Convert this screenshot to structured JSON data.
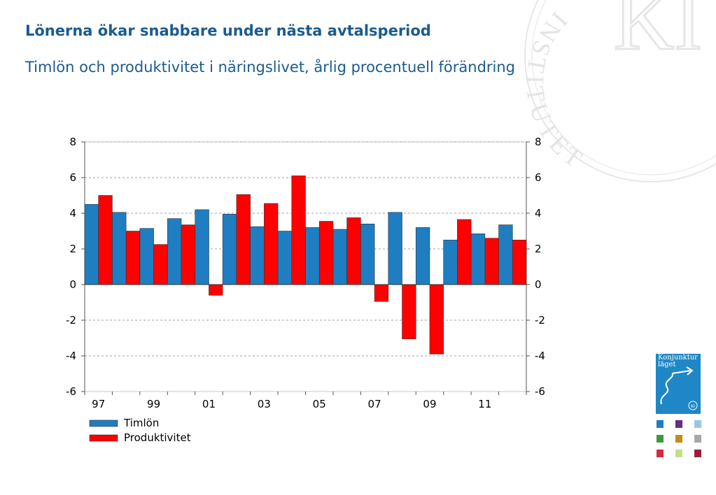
{
  "title": "Lönerna ökar snabbare under nästa avtalsperiod",
  "subtitle": "Timlön och produktivitet i näringslivet, årlig procentuell förändring",
  "watermark": {
    "text": "INSTITUTET",
    "mark": "KI"
  },
  "logo": {
    "text": "Konjunktur\nläget",
    "badge": "KI"
  },
  "swatches": [
    {
      "color": "#1f7ec2",
      "name": "blue-report-icon"
    },
    {
      "color": "#6a2d7a",
      "name": "purple-report-icon"
    },
    {
      "color": "#9cc6df",
      "name": "lightblue-report-icon"
    },
    {
      "color": "#3c9a3c",
      "name": "green-report-icon"
    },
    {
      "color": "#c98a17",
      "name": "orange-report-icon"
    },
    {
      "color": "#a8a8a8",
      "name": "grey-report-icon"
    },
    {
      "color": "#d8283f",
      "name": "red-report-icon"
    },
    {
      "color": "#c2de8a",
      "name": "lime-report-icon"
    },
    {
      "color": "#9a1f36",
      "name": "darkred-report-icon"
    }
  ],
  "chart_data": {
    "type": "bar",
    "categories": [
      "1997",
      "1998",
      "1999",
      "2000",
      "2001",
      "2002",
      "2003",
      "2004",
      "2005",
      "2006",
      "2007",
      "2008",
      "2009",
      "2010",
      "2011",
      "2012"
    ],
    "xtick_labels": [
      "97",
      "99",
      "01",
      "03",
      "05",
      "07",
      "09",
      "11"
    ],
    "series": [
      {
        "name": "Timlön",
        "color": "#1f7ec2",
        "values": [
          4.5,
          4.05,
          3.15,
          3.7,
          4.2,
          3.95,
          3.25,
          3.0,
          3.2,
          3.1,
          3.4,
          4.05,
          3.2,
          2.5,
          2.85,
          3.35
        ]
      },
      {
        "name": "Produktivitet",
        "color": "#ff0000",
        "values": [
          5.0,
          3.0,
          2.25,
          3.35,
          -0.6,
          5.05,
          4.55,
          6.1,
          3.55,
          3.75,
          -0.95,
          -3.05,
          -3.9,
          3.65,
          2.6,
          2.5
        ]
      }
    ],
    "ylim": [
      -6,
      8
    ],
    "yticks": [
      8,
      6,
      4,
      2,
      0,
      -2,
      -4,
      -6
    ],
    "secondary_axis": true,
    "grid": "horizontal dashed",
    "legend": "bottom-left"
  }
}
